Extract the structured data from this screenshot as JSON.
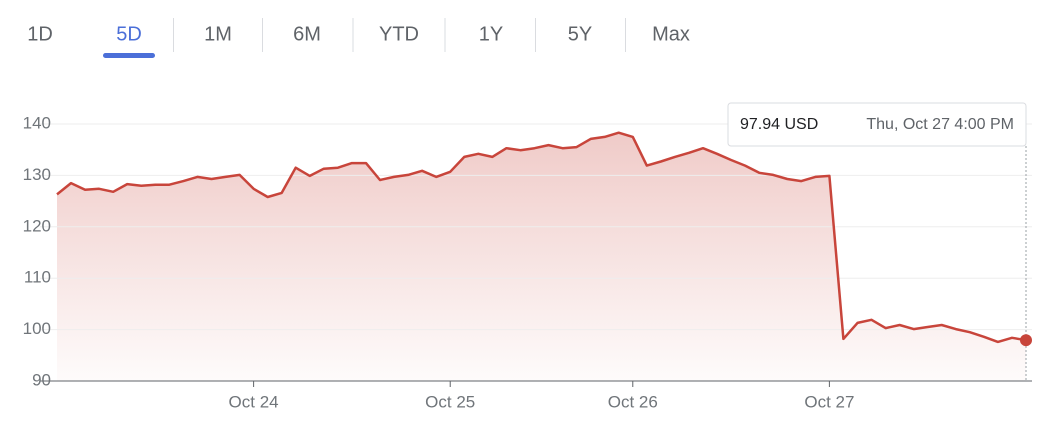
{
  "tabs": [
    "1D",
    "5D",
    "1M",
    "6M",
    "YTD",
    "1Y",
    "5Y",
    "Max"
  ],
  "active_tab": 1,
  "chart_data": {
    "type": "line",
    "color": "#c8453b",
    "categories": [
      null,
      null,
      null,
      null,
      null,
      null,
      null,
      null,
      null,
      null,
      null,
      null,
      null,
      null,
      "Oct 24",
      null,
      null,
      null,
      null,
      null,
      null,
      null,
      null,
      null,
      null,
      null,
      null,
      null,
      "Oct 25",
      null,
      null,
      null,
      null,
      null,
      null,
      null,
      null,
      null,
      null,
      null,
      null,
      "Oct 26",
      null,
      null,
      null,
      null,
      null,
      null,
      null,
      null,
      null,
      null,
      null,
      null,
      null,
      "Oct 27",
      null,
      null,
      null,
      null,
      null,
      null,
      null,
      null,
      null,
      null,
      null,
      null,
      null,
      null
    ],
    "values": [
      126.3,
      128.5,
      127.2,
      127.4,
      126.8,
      128.3,
      128.0,
      128.2,
      128.2,
      128.9,
      129.7,
      129.3,
      129.7,
      130.1,
      127.4,
      125.8,
      126.6,
      131.5,
      129.9,
      131.3,
      131.5,
      132.4,
      132.4,
      129.1,
      129.7,
      130.1,
      130.9,
      129.7,
      130.7,
      133.6,
      134.2,
      133.6,
      135.3,
      134.9,
      135.3,
      135.9,
      135.3,
      135.5,
      137.1,
      137.5,
      138.3,
      137.5,
      131.9,
      132.7,
      133.6,
      134.4,
      135.3,
      134.2,
      133.0,
      131.9,
      130.5,
      130.1,
      129.3,
      128.9,
      129.7,
      129.9,
      98.2,
      101.3,
      101.9,
      100.3,
      100.9,
      100.1,
      100.5,
      100.9,
      100.1,
      99.5,
      98.6,
      97.6,
      98.4,
      97.94
    ],
    "ylim": [
      90,
      140
    ],
    "yticks": [
      90,
      100,
      110,
      120,
      130,
      140
    ],
    "grid": true,
    "tooltip": {
      "value": 97.94,
      "label": "97.94 USD",
      "date": "Thu, Oct 27 4:00 PM"
    }
  }
}
